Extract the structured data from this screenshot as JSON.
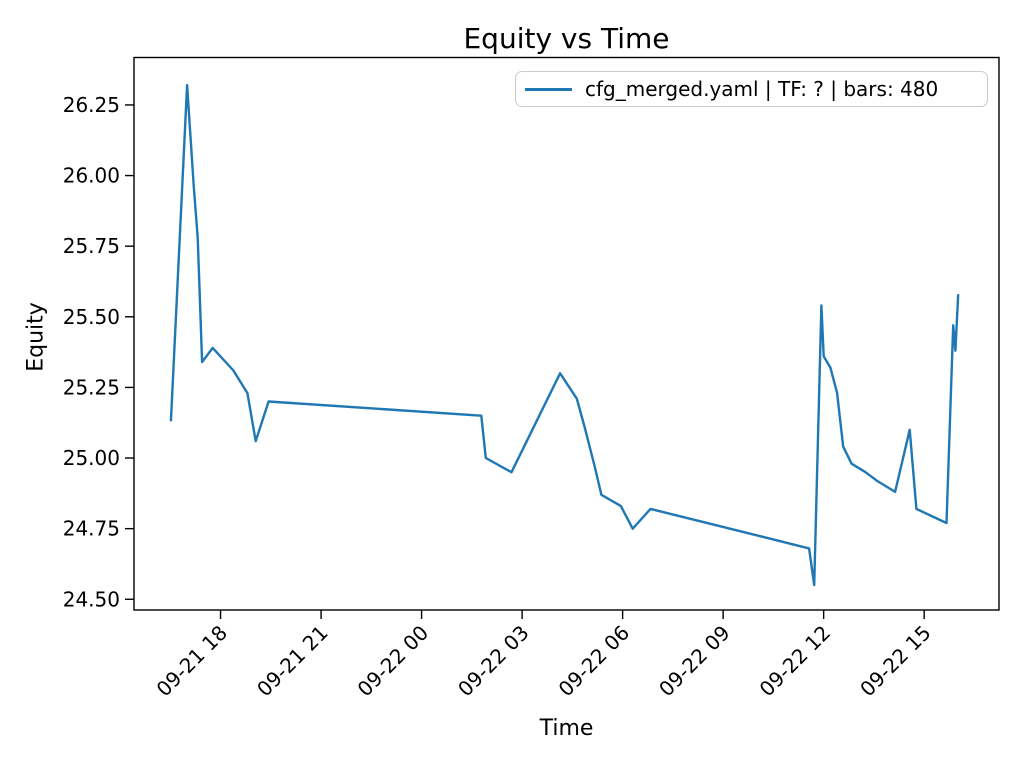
{
  "chart": {
    "title": "Equity vs Time",
    "xlabel": "Time",
    "ylabel": "Equity",
    "legend_label": "cfg_merged.yaml | TF: ? | bars: 480",
    "line_color": "#1f77b4",
    "axis_color": "#000000",
    "background_color": "#ffffff"
  },
  "chart_data": {
    "type": "line",
    "title": "Equity vs Time",
    "xlabel": "Time",
    "ylabel": "Equity",
    "grid": false,
    "legend": [
      "cfg_merged.yaml | TF: ? | bars: 480"
    ],
    "legend_position": "upper right",
    "x_ticks": [
      {
        "label": "09-21 18",
        "minutes": 1080
      },
      {
        "label": "09-21 21",
        "minutes": 1260
      },
      {
        "label": "09-22 00",
        "minutes": 1440
      },
      {
        "label": "09-22 03",
        "minutes": 1620
      },
      {
        "label": "09-22 06",
        "minutes": 1800
      },
      {
        "label": "09-22 09",
        "minutes": 1980
      },
      {
        "label": "09-22 12",
        "minutes": 2160
      },
      {
        "label": "09-22 15",
        "minutes": 2340
      }
    ],
    "y_ticks": [
      24.5,
      24.75,
      25.0,
      25.25,
      25.5,
      25.75,
      26.0,
      26.25
    ],
    "ylim": [
      24.462,
      26.418
    ],
    "xlim_minutes_from_0921_0000": [
      925,
      2474
    ],
    "series": [
      {
        "name": "cfg_merged.yaml | TF: ? | bars: 480",
        "color": "#1f77b4",
        "points": [
          [
            "09-21 16:31",
            25.13
          ],
          [
            "09-21 17:00",
            26.32
          ],
          [
            "09-21 17:12",
            25.96
          ],
          [
            "09-21 17:19",
            25.78
          ],
          [
            "09-21 17:27",
            25.34
          ],
          [
            "09-21 17:46",
            25.39
          ],
          [
            "09-21 18:23",
            25.31
          ],
          [
            "09-21 18:48",
            25.23
          ],
          [
            "09-21 19:03",
            25.06
          ],
          [
            "09-21 19:26",
            25.2
          ],
          [
            "09-22 01:47",
            25.15
          ],
          [
            "09-22 01:55",
            25.0
          ],
          [
            "09-22 02:41",
            24.95
          ],
          [
            "09-22 04:08",
            25.3
          ],
          [
            "09-22 04:38",
            25.21
          ],
          [
            "09-22 04:52",
            25.11
          ],
          [
            "09-22 05:10",
            24.97
          ],
          [
            "09-22 05:22",
            24.87
          ],
          [
            "09-22 05:57",
            24.83
          ],
          [
            "09-22 06:18",
            24.75
          ],
          [
            "09-22 06:50",
            24.82
          ],
          [
            "09-22 11:34",
            24.68
          ],
          [
            "09-22 11:43",
            24.55
          ],
          [
            "09-22 11:56",
            25.54
          ],
          [
            "09-22 12:00",
            25.36
          ],
          [
            "09-22 12:12",
            25.32
          ],
          [
            "09-22 12:24",
            25.23
          ],
          [
            "09-22 12:35",
            25.04
          ],
          [
            "09-22 12:50",
            24.98
          ],
          [
            "09-22 13:15",
            24.95
          ],
          [
            "09-22 13:35",
            24.92
          ],
          [
            "09-22 14:08",
            24.88
          ],
          [
            "09-22 14:34",
            25.1
          ],
          [
            "09-22 14:46",
            24.82
          ],
          [
            "09-22 15:40",
            24.77
          ],
          [
            "09-22 15:52",
            25.47
          ],
          [
            "09-22 15:56",
            25.38
          ],
          [
            "09-22 16:01",
            25.58
          ]
        ]
      }
    ]
  }
}
